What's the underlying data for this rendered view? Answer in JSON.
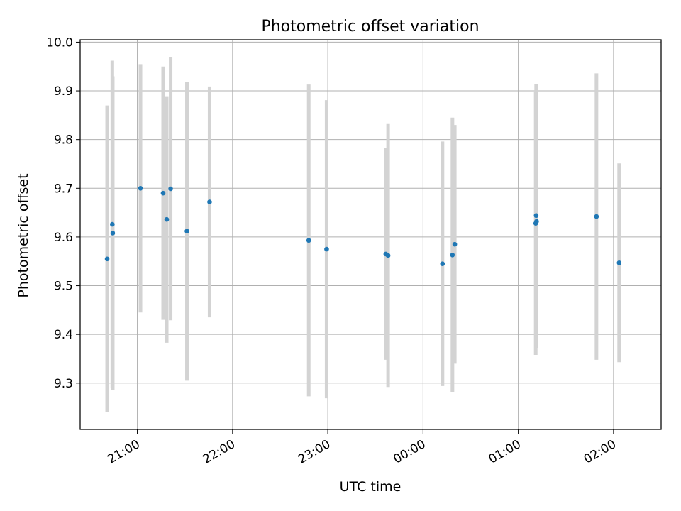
{
  "chart_data": {
    "type": "scatter",
    "title": "Photometric offset variation",
    "xlabel": "UTC time",
    "ylabel": "Photometric offset",
    "x_axis_type": "time",
    "xlim": [
      "20:24",
      "02:30"
    ],
    "ylim": [
      9.205,
      10.005
    ],
    "x_ticks": [
      "21:00",
      "22:00",
      "23:00",
      "00:00",
      "01:00",
      "02:00"
    ],
    "y_ticks": [
      "9.3",
      "9.4",
      "9.5",
      "9.6",
      "9.7",
      "9.8",
      "9.9",
      "10.0"
    ],
    "grid": true,
    "legend": "none",
    "error_bar_color": "#d3d3d3",
    "point_color": "#1f77b4",
    "series": [
      {
        "points": [
          {
            "x": "20:41",
            "y": 9.555,
            "err": 0.315
          },
          {
            "x": "20:44",
            "y": 9.626,
            "err": 0.336
          },
          {
            "x": "20:44",
            "y": 9.608,
            "err": 0.322
          },
          {
            "x": "21:02",
            "y": 9.7,
            "err": 0.255
          },
          {
            "x": "21:16",
            "y": 9.69,
            "err": 0.26
          },
          {
            "x": "21:18",
            "y": 9.636,
            "err": 0.253
          },
          {
            "x": "21:21",
            "y": 9.699,
            "err": 0.27
          },
          {
            "x": "21:31",
            "y": 9.612,
            "err": 0.307
          },
          {
            "x": "21:45",
            "y": 9.672,
            "err": 0.237
          },
          {
            "x": "22:48",
            "y": 9.593,
            "err": 0.32
          },
          {
            "x": "22:59",
            "y": 9.575,
            "err": 0.306
          },
          {
            "x": "23:36",
            "y": 9.565,
            "err": 0.217
          },
          {
            "x": "23:38",
            "y": 9.562,
            "err": 0.27
          },
          {
            "x": "00:12",
            "y": 9.545,
            "err": 0.251
          },
          {
            "x": "00:18",
            "y": 9.563,
            "err": 0.282
          },
          {
            "x": "00:20",
            "y": 9.585,
            "err": 0.245
          },
          {
            "x": "01:11",
            "y": 9.644,
            "err": 0.27
          },
          {
            "x": "01:11",
            "y": 9.632,
            "err": 0.26
          },
          {
            "x": "01:11",
            "y": 9.628,
            "err": 0.27
          },
          {
            "x": "01:49",
            "y": 9.642,
            "err": 0.294
          },
          {
            "x": "02:03",
            "y": 9.547,
            "err": 0.204
          }
        ]
      }
    ]
  }
}
